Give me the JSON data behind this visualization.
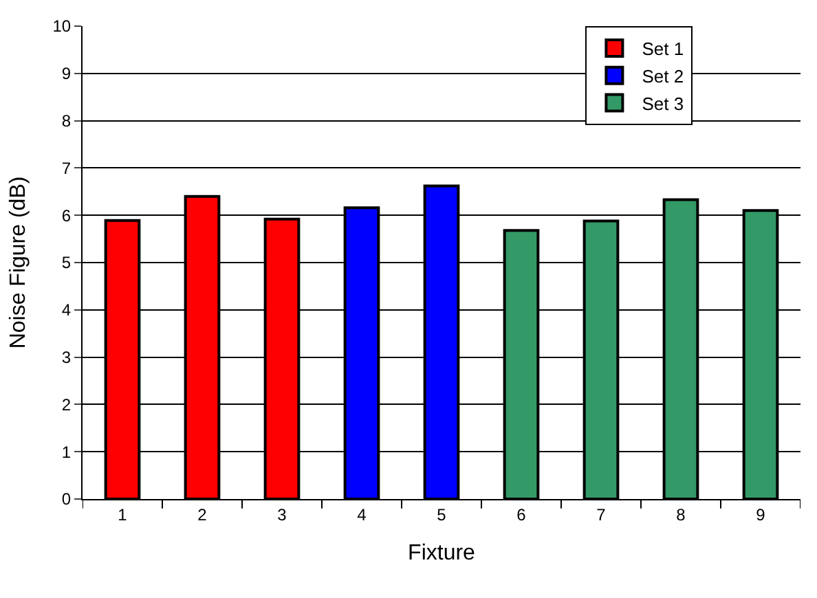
{
  "chart_data": {
    "type": "bar",
    "xlabel": "Fixture",
    "ylabel": "Noise Figure (dB)",
    "categories": [
      "1",
      "2",
      "3",
      "4",
      "5",
      "6",
      "7",
      "8",
      "9"
    ],
    "series": [
      {
        "name": "Set 1",
        "color": "#ff0000",
        "values": [
          5.89,
          6.4,
          5.92,
          null,
          null,
          null,
          null,
          null,
          null
        ]
      },
      {
        "name": "Set 2",
        "color": "#0000ff",
        "values": [
          null,
          null,
          null,
          6.16,
          6.62,
          null,
          null,
          null,
          null
        ]
      },
      {
        "name": "Set 3",
        "color": "#339966",
        "values": [
          null,
          null,
          null,
          null,
          null,
          5.68,
          5.88,
          6.33,
          6.1
        ]
      }
    ],
    "ylim": [
      0,
      10
    ],
    "yticks": [
      0,
      1,
      2,
      3,
      4,
      5,
      6,
      7,
      8,
      9,
      10
    ],
    "grid": "y",
    "legend": "top right"
  }
}
